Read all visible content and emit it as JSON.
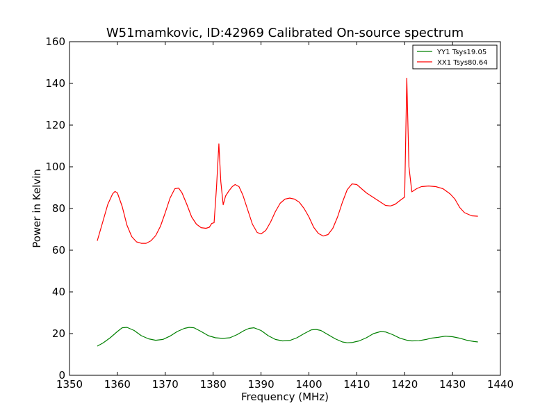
{
  "chart_data": {
    "type": "line",
    "title": "W51mamkovic, ID:42969 Calibrated On-source spectrum",
    "xlabel": "Frequency (MHz)",
    "ylabel": "Power in Kelvin",
    "xlim": [
      1350,
      1440
    ],
    "ylim": [
      0,
      160
    ],
    "xticks": [
      1350,
      1360,
      1370,
      1380,
      1390,
      1400,
      1410,
      1420,
      1430,
      1440
    ],
    "yticks": [
      0,
      20,
      40,
      60,
      80,
      100,
      120,
      140,
      160
    ],
    "grid": false,
    "legend_position": "top-right",
    "series": [
      {
        "name": "YY1 Tsys19.05",
        "color": "#008000",
        "x": [
          1355.8,
          1357,
          1358.5,
          1360,
          1361,
          1362,
          1363.5,
          1365,
          1366.5,
          1368,
          1369.5,
          1371,
          1372.5,
          1374,
          1375,
          1376,
          1377.5,
          1379,
          1380.5,
          1382,
          1383.5,
          1385,
          1386.5,
          1387.5,
          1388.5,
          1390,
          1391.5,
          1393,
          1394.5,
          1396,
          1397.5,
          1399,
          1400.5,
          1401.5,
          1402.5,
          1404,
          1405.5,
          1407,
          1408,
          1409,
          1410.5,
          1412,
          1413.5,
          1415,
          1416,
          1417.5,
          1419,
          1420.5,
          1421.5,
          1423,
          1424.5,
          1425.5,
          1427,
          1428.5,
          1430,
          1431.5,
          1433,
          1434.5,
          1435.3
        ],
        "y": [
          14.0,
          15.5,
          18.0,
          21.0,
          22.8,
          23.0,
          21.5,
          19.0,
          17.5,
          16.8,
          17.2,
          18.8,
          21.0,
          22.5,
          23.0,
          22.8,
          21.0,
          19.0,
          18.0,
          17.7,
          18.0,
          19.5,
          21.5,
          22.5,
          22.8,
          21.5,
          19.0,
          17.2,
          16.5,
          16.7,
          18.0,
          20.0,
          21.8,
          22.0,
          21.5,
          19.5,
          17.5,
          16.0,
          15.6,
          15.7,
          16.5,
          18.0,
          20.0,
          21.0,
          20.8,
          19.5,
          17.8,
          16.8,
          16.5,
          16.6,
          17.2,
          17.8,
          18.2,
          18.8,
          18.5,
          17.8,
          16.8,
          16.2,
          16.0
        ]
      },
      {
        "name": "XX1 Tsys80.64",
        "color": "#ff0000",
        "x": [
          1355.8,
          1357,
          1358,
          1359,
          1359.5,
          1360,
          1361,
          1362,
          1363,
          1364,
          1365,
          1366,
          1367,
          1368,
          1369,
          1370,
          1371,
          1372,
          1372.8,
          1373.5,
          1374.5,
          1375.5,
          1376.5,
          1377.5,
          1378.5,
          1379.2,
          1379.7,
          1380.2,
          1380.7,
          1381.2,
          1381.6,
          1382.1,
          1382.6,
          1383.3,
          1384,
          1384.6,
          1385.4,
          1386.2,
          1387.2,
          1388.2,
          1389.2,
          1390,
          1391,
          1392,
          1393,
          1394,
          1395,
          1396,
          1397,
          1398,
          1399,
          1400,
          1401,
          1402,
          1403,
          1404,
          1405,
          1406,
          1407,
          1408,
          1409,
          1410,
          1411,
          1412,
          1413,
          1414,
          1415,
          1416,
          1417,
          1418,
          1419,
          1420,
          1420.45,
          1420.9,
          1421.5,
          1422.5,
          1423.5,
          1425,
          1426.5,
          1428,
          1429.5,
          1430.5,
          1431.5,
          1432.5,
          1434,
          1435.3
        ],
        "y": [
          64.5,
          74.0,
          82.0,
          87.0,
          88.2,
          87.5,
          81.0,
          72.0,
          66.5,
          64.0,
          63.3,
          63.3,
          64.5,
          67.0,
          71.5,
          78.0,
          85.0,
          89.5,
          89.8,
          87.5,
          82.0,
          76.0,
          72.5,
          70.8,
          70.5,
          71.0,
          72.8,
          73.2,
          90.0,
          111.0,
          93.0,
          81.8,
          86.0,
          88.5,
          90.5,
          91.5,
          90.5,
          86.5,
          79.5,
          72.5,
          68.5,
          67.8,
          69.5,
          73.5,
          78.5,
          82.5,
          84.5,
          85.0,
          84.5,
          83.0,
          80.0,
          76.0,
          71.0,
          68.0,
          66.8,
          67.5,
          70.5,
          76.0,
          83.0,
          89.0,
          91.8,
          91.5,
          89.5,
          87.5,
          86.0,
          84.5,
          83.0,
          81.5,
          81.2,
          82.0,
          83.8,
          85.5,
          142.5,
          100.0,
          88.0,
          89.5,
          90.5,
          90.8,
          90.5,
          89.5,
          87.0,
          84.5,
          80.5,
          78.0,
          76.5,
          76.3
        ]
      }
    ]
  }
}
